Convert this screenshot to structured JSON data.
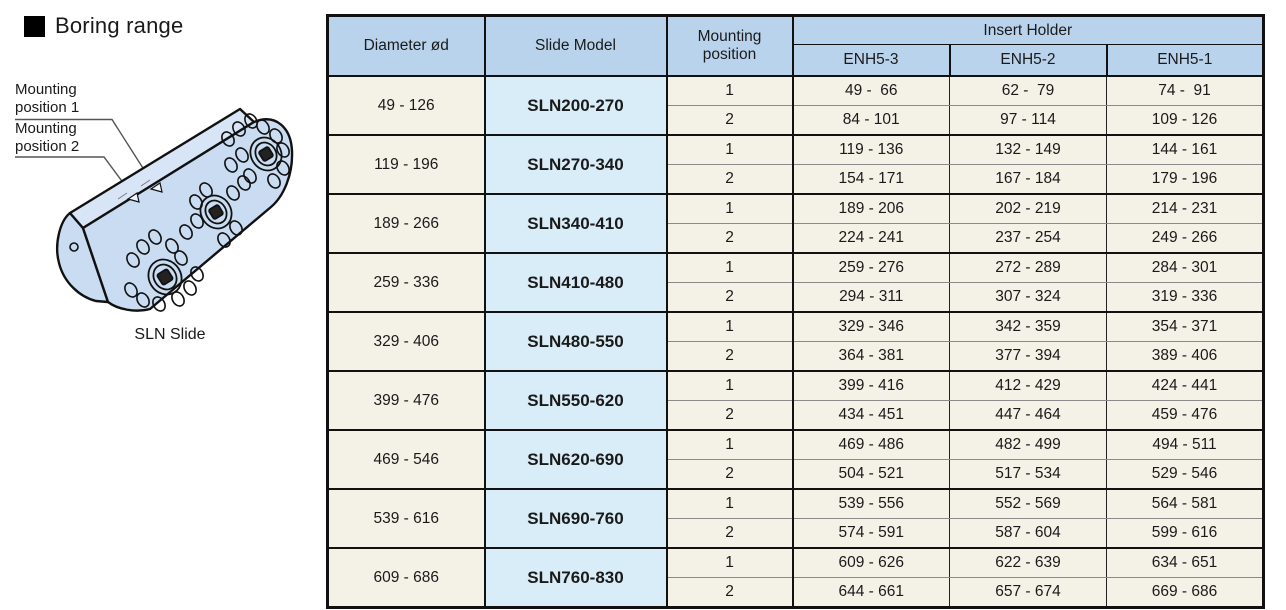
{
  "heading": {
    "title": "Boring range"
  },
  "illustration": {
    "caption": "SLN Slide",
    "callouts": [
      {
        "text": "Mounting\nposition 1"
      },
      {
        "text": "Mounting\nposition 2"
      }
    ]
  },
  "table": {
    "headers": {
      "diameter": "Diameter ød",
      "slide_model": "Slide Model",
      "mounting_position": "Mounting position",
      "insert_holder": "Insert Holder",
      "holder_models": [
        "ENH5-3",
        "ENH5-2",
        "ENH5-1"
      ]
    },
    "groups": [
      {
        "diameter": "49 - 126",
        "model": "SLN200-270",
        "rows": [
          {
            "position": "1",
            "values": [
              "49 -  66",
              "62 -  79",
              "74 -  91"
            ]
          },
          {
            "position": "2",
            "values": [
              "84 - 101",
              "97 - 114",
              "109 - 126"
            ]
          }
        ]
      },
      {
        "diameter": "119 - 196",
        "model": "SLN270-340",
        "rows": [
          {
            "position": "1",
            "values": [
              "119 - 136",
              "132 - 149",
              "144 - 161"
            ]
          },
          {
            "position": "2",
            "values": [
              "154 - 171",
              "167 - 184",
              "179 - 196"
            ]
          }
        ]
      },
      {
        "diameter": "189 - 266",
        "model": "SLN340-410",
        "rows": [
          {
            "position": "1",
            "values": [
              "189 - 206",
              "202 - 219",
              "214 - 231"
            ]
          },
          {
            "position": "2",
            "values": [
              "224 - 241",
              "237 - 254",
              "249 - 266"
            ]
          }
        ]
      },
      {
        "diameter": "259 - 336",
        "model": "SLN410-480",
        "rows": [
          {
            "position": "1",
            "values": [
              "259 - 276",
              "272 - 289",
              "284 - 301"
            ]
          },
          {
            "position": "2",
            "values": [
              "294 - 311",
              "307 - 324",
              "319 - 336"
            ]
          }
        ]
      },
      {
        "diameter": "329 - 406",
        "model": "SLN480-550",
        "rows": [
          {
            "position": "1",
            "values": [
              "329 - 346",
              "342 - 359",
              "354 - 371"
            ]
          },
          {
            "position": "2",
            "values": [
              "364 - 381",
              "377 - 394",
              "389 - 406"
            ]
          }
        ]
      },
      {
        "diameter": "399 - 476",
        "model": "SLN550-620",
        "rows": [
          {
            "position": "1",
            "values": [
              "399 - 416",
              "412 - 429",
              "424 - 441"
            ]
          },
          {
            "position": "2",
            "values": [
              "434 - 451",
              "447 - 464",
              "459 - 476"
            ]
          }
        ]
      },
      {
        "diameter": "469 - 546",
        "model": "SLN620-690",
        "rows": [
          {
            "position": "1",
            "values": [
              "469 - 486",
              "482 - 499",
              "494 - 511"
            ]
          },
          {
            "position": "2",
            "values": [
              "504 - 521",
              "517 - 534",
              "529 - 546"
            ]
          }
        ]
      },
      {
        "diameter": "539 - 616",
        "model": "SLN690-760",
        "rows": [
          {
            "position": "1",
            "values": [
              "539 - 556",
              "552 - 569",
              "564 - 581"
            ]
          },
          {
            "position": "2",
            "values": [
              "574 - 591",
              "587 - 604",
              "599 - 616"
            ]
          }
        ]
      },
      {
        "diameter": "609 - 686",
        "model": "SLN760-830",
        "rows": [
          {
            "position": "1",
            "values": [
              "609 - 626",
              "622 - 639",
              "634 - 651"
            ]
          },
          {
            "position": "2",
            "values": [
              "644 - 661",
              "657 - 674",
              "669 - 686"
            ]
          }
        ]
      }
    ]
  },
  "colors": {
    "header_bg": "#b9d3ed",
    "model_bg": "#d9edf9",
    "cell_bg": "#f4f1e6",
    "border": "#111111",
    "thin_line": "#8a8a8a",
    "slide_fill": "#c9dcf2"
  }
}
